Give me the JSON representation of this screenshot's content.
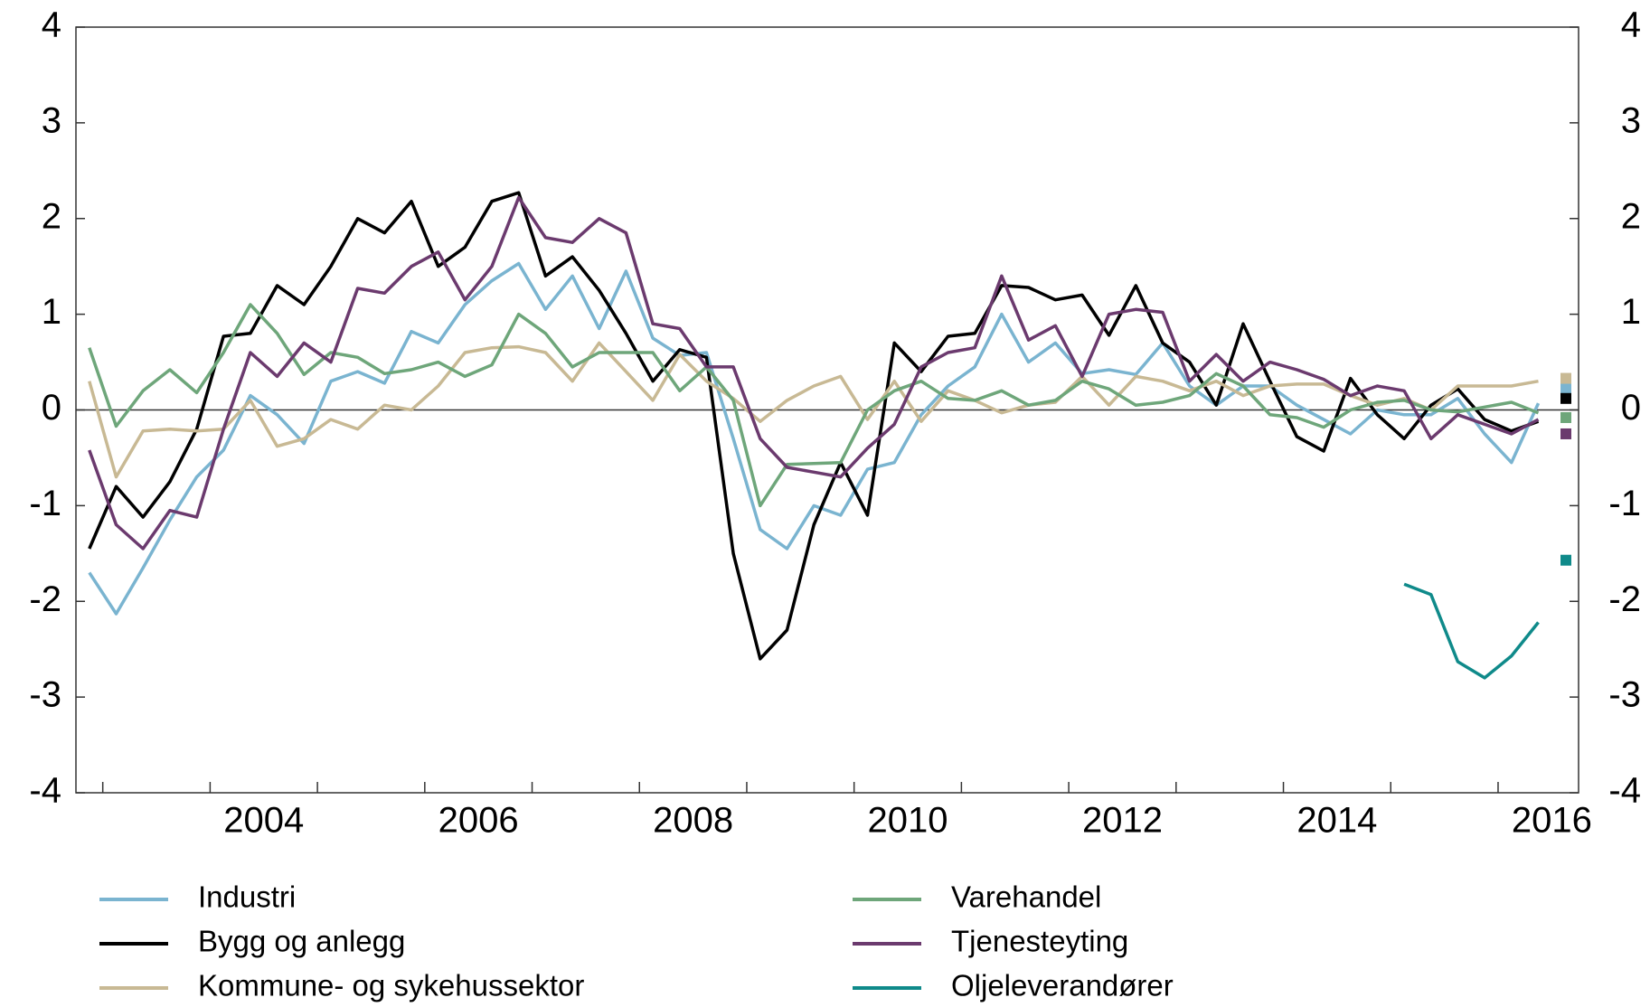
{
  "chart_data": {
    "type": "line",
    "x": [
      2002.875,
      2003.125,
      2003.375,
      2003.625,
      2003.875,
      2004.125,
      2004.375,
      2004.625,
      2004.875,
      2005.125,
      2005.375,
      2005.625,
      2005.875,
      2006.125,
      2006.375,
      2006.625,
      2006.875,
      2007.125,
      2007.375,
      2007.625,
      2007.875,
      2008.125,
      2008.375,
      2008.625,
      2008.875,
      2009.125,
      2009.375,
      2009.625,
      2009.875,
      2010.125,
      2010.375,
      2010.625,
      2010.875,
      2011.125,
      2011.375,
      2011.625,
      2011.875,
      2012.125,
      2012.375,
      2012.625,
      2012.875,
      2013.125,
      2013.375,
      2013.625,
      2013.875,
      2014.125,
      2014.375,
      2014.625,
      2014.875,
      2015.125,
      2015.375,
      2015.625,
      2015.875,
      2016.125,
      2016.375
    ],
    "xlim": [
      2002.75,
      2016.75
    ],
    "xticks": [
      {
        "value": 2004.5,
        "label": "2004"
      },
      {
        "value": 2006.5,
        "label": "2006"
      },
      {
        "value": 2008.5,
        "label": "2008"
      },
      {
        "value": 2010.5,
        "label": "2010"
      },
      {
        "value": 2012.5,
        "label": "2012"
      },
      {
        "value": 2014.5,
        "label": "2014"
      },
      {
        "value": 2016.5,
        "label": "2016"
      }
    ],
    "x_minor_ticks": [
      2003,
      2004,
      2005,
      2006,
      2007,
      2008,
      2009,
      2010,
      2011,
      2012,
      2013,
      2014,
      2015,
      2016
    ],
    "ylim": [
      -4,
      4
    ],
    "yticks": [
      -4,
      -3,
      -2,
      -1,
      0,
      1,
      2,
      3,
      4
    ],
    "y2lim": [
      -4,
      4
    ],
    "y2ticks": [
      -4,
      -3,
      -2,
      -1,
      0,
      1,
      2,
      3,
      4
    ],
    "series": [
      {
        "name": "Industri",
        "color": "#7ab4d0",
        "marker": 0.22,
        "values": [
          -1.7,
          -2.13,
          -1.65,
          -1.15,
          -0.7,
          -0.42,
          0.15,
          -0.05,
          -0.35,
          0.3,
          0.4,
          0.28,
          0.82,
          0.7,
          1.1,
          1.35,
          1.53,
          1.05,
          1.4,
          0.85,
          1.45,
          0.75,
          0.57,
          0.6,
          -0.3,
          -1.25,
          -1.45,
          -1.0,
          -1.1,
          -0.62,
          -0.55,
          -0.05,
          0.25,
          0.45,
          1.0,
          0.5,
          0.7,
          0.38,
          0.42,
          0.37,
          0.7,
          0.25,
          0.05,
          0.25,
          0.25,
          0.05,
          -0.1,
          -0.25,
          0.0,
          -0.05,
          -0.05,
          0.12,
          -0.25,
          -0.55,
          0.07
        ]
      },
      {
        "name": "Bygg og anlegg",
        "color": "#000000",
        "marker": 0.12,
        "values": [
          -1.45,
          -0.8,
          -1.12,
          -0.75,
          -0.2,
          0.77,
          0.8,
          1.3,
          1.1,
          1.5,
          2.0,
          1.85,
          2.18,
          1.5,
          1.7,
          2.18,
          2.27,
          1.4,
          1.6,
          1.25,
          0.8,
          0.3,
          0.63,
          0.55,
          -1.5,
          -2.6,
          -2.3,
          -1.2,
          -0.55,
          -1.1,
          0.7,
          0.4,
          0.77,
          0.8,
          1.3,
          1.28,
          1.15,
          1.2,
          0.78,
          1.3,
          0.7,
          0.5,
          0.05,
          0.9,
          0.3,
          -0.28,
          -0.43,
          0.33,
          -0.05,
          -0.3,
          0.05,
          0.22,
          -0.1,
          -0.22,
          -0.12
        ]
      },
      {
        "name": "Kommune- og sykehussektor",
        "color": "#c8b994",
        "marker": 0.33,
        "values": [
          0.3,
          -0.7,
          -0.22,
          -0.2,
          -0.22,
          -0.2,
          0.1,
          -0.38,
          -0.3,
          -0.1,
          -0.2,
          0.05,
          0.0,
          0.25,
          0.6,
          0.65,
          0.66,
          0.6,
          0.3,
          0.7,
          0.4,
          0.1,
          0.58,
          0.3,
          0.12,
          -0.12,
          0.1,
          0.25,
          0.35,
          -0.1,
          0.3,
          -0.12,
          0.2,
          0.1,
          -0.03,
          0.05,
          0.08,
          0.35,
          0.05,
          0.35,
          0.3,
          0.2,
          0.3,
          0.15,
          0.25,
          0.27,
          0.27,
          0.15,
          0.05,
          0.12,
          0.0,
          0.25,
          0.25,
          0.25,
          0.3
        ]
      },
      {
        "name": "Varehandel",
        "color": "#6ea67a",
        "marker": -0.08,
        "values": [
          0.65,
          -0.17,
          0.2,
          0.42,
          0.18,
          0.6,
          1.1,
          0.8,
          0.37,
          0.6,
          0.55,
          0.38,
          0.42,
          0.5,
          0.35,
          0.47,
          1.0,
          0.8,
          0.45,
          0.6,
          0.6,
          0.6,
          0.2,
          0.45,
          0.1,
          -1.0,
          -0.57,
          -0.56,
          -0.55,
          0.0,
          0.2,
          0.3,
          0.12,
          0.1,
          0.2,
          0.05,
          0.1,
          0.3,
          0.22,
          0.05,
          0.08,
          0.15,
          0.38,
          0.25,
          -0.05,
          -0.08,
          -0.18,
          0.0,
          0.08,
          0.1,
          0.0,
          -0.02,
          0.03,
          0.08,
          -0.03
        ]
      },
      {
        "name": "Tjenesteyting",
        "color": "#6b3a6e",
        "marker": -0.25,
        "values": [
          -0.42,
          -1.2,
          -1.45,
          -1.05,
          -1.12,
          -0.2,
          0.6,
          0.35,
          0.7,
          0.5,
          1.27,
          1.22,
          1.5,
          1.65,
          1.15,
          1.5,
          2.22,
          1.8,
          1.75,
          2.0,
          1.85,
          0.9,
          0.85,
          0.45,
          0.45,
          -0.3,
          -0.6,
          -0.65,
          -0.7,
          -0.4,
          -0.15,
          0.45,
          0.6,
          0.65,
          1.4,
          0.73,
          0.88,
          0.35,
          1.0,
          1.05,
          1.02,
          0.3,
          0.58,
          0.3,
          0.5,
          0.42,
          0.32,
          0.15,
          0.25,
          0.2,
          -0.3,
          -0.05,
          -0.15,
          -0.25,
          -0.1
        ]
      },
      {
        "name": "Oljeleverandører",
        "color": "#0f8a8a",
        "marker": -1.57,
        "values": [
          null,
          null,
          null,
          null,
          null,
          null,
          null,
          null,
          null,
          null,
          null,
          null,
          null,
          null,
          null,
          null,
          null,
          null,
          null,
          null,
          null,
          null,
          null,
          null,
          null,
          null,
          null,
          null,
          null,
          null,
          null,
          null,
          null,
          null,
          null,
          null,
          null,
          null,
          null,
          null,
          null,
          null,
          null,
          null,
          null,
          null,
          null,
          null,
          null,
          -1.82,
          -1.93,
          -2.63,
          -2.8,
          -2.57,
          -2.22
        ]
      }
    ]
  }
}
